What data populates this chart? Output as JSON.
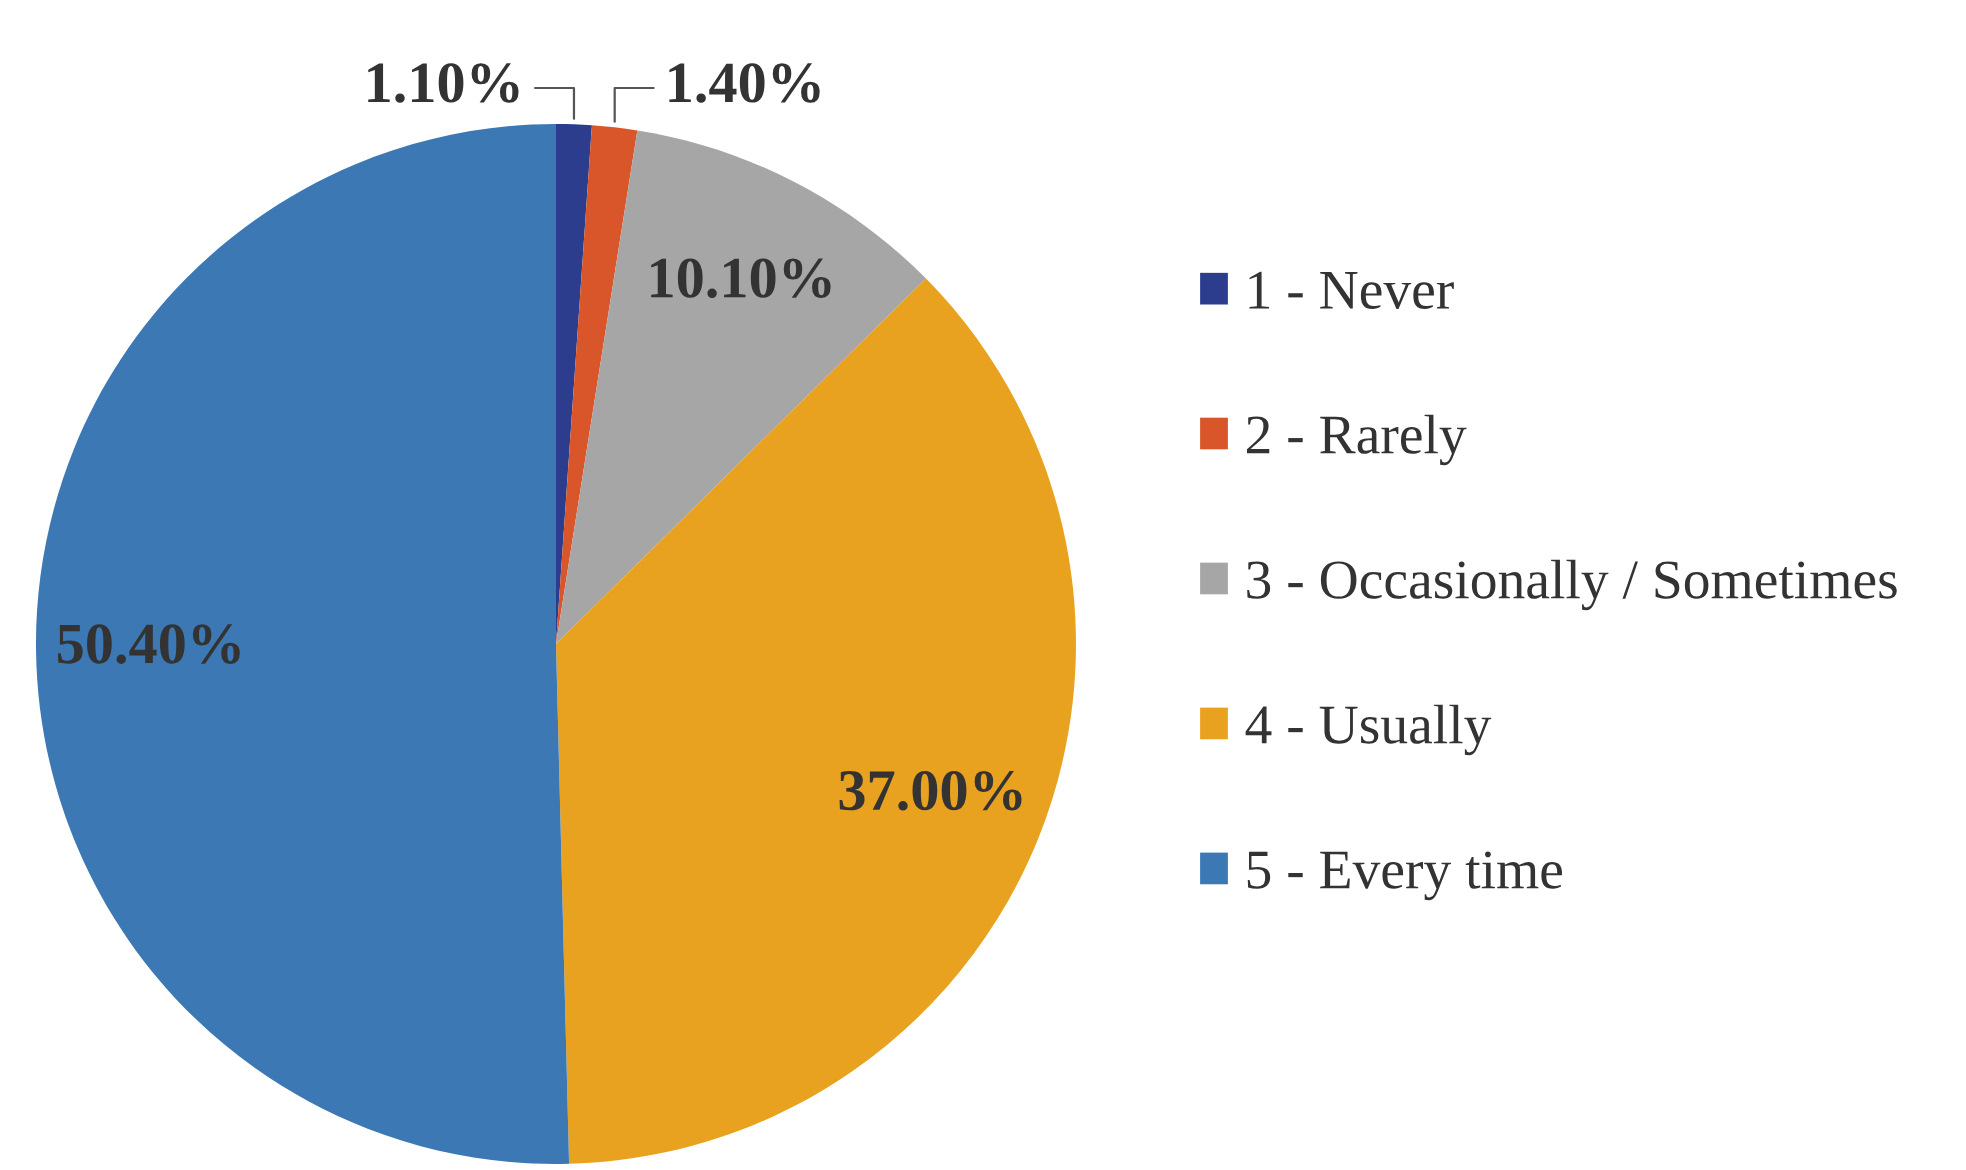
{
  "chart_data": {
    "type": "pie",
    "categories": [
      "1 - Never",
      "2 - Rarely",
      "3 - Occasionally / Sometimes",
      "4 - Usually",
      "5 - Every time"
    ],
    "values": [
      1.1,
      1.4,
      10.1,
      37.0,
      50.4
    ],
    "colors": [
      "#2b3d8c",
      "#d9562b",
      "#a6a6a6",
      "#e9a21f",
      "#3b78b4"
    ],
    "value_labels": [
      "1.10%",
      "1.40%",
      "10.10%",
      "37.00%",
      "50.40%"
    ],
    "legend": "right"
  }
}
